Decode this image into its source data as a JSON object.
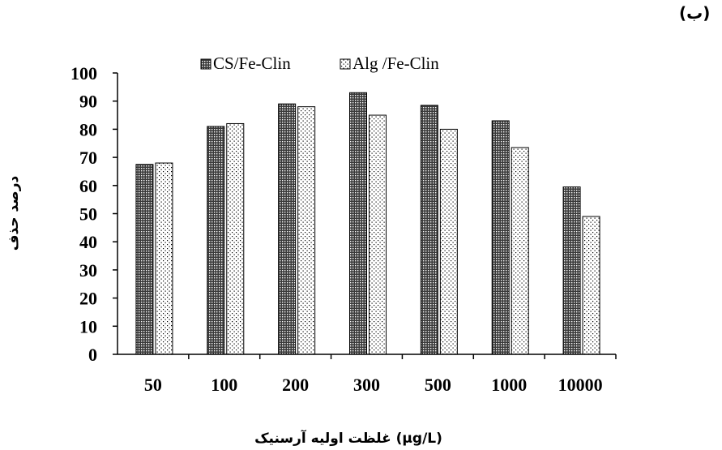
{
  "panel_label": "(ب)",
  "chart_data": {
    "type": "bar",
    "categories": [
      "50",
      "100",
      "200",
      "300",
      "500",
      "1000",
      "10000"
    ],
    "series": [
      {
        "name": "CS/Fe-Clin",
        "values": [
          67.5,
          81,
          89,
          93,
          88.5,
          83,
          59.5
        ],
        "pattern": "dense-dots"
      },
      {
        "name": "Alg /Fe-Clin",
        "values": [
          68,
          82,
          88,
          85,
          80,
          73.5,
          49
        ],
        "pattern": "sparse-dots"
      }
    ],
    "title": "",
    "xlabel": "غلظت اولیه آرسنیک (µg/L)",
    "ylabel": "درصد حذف",
    "ylim": [
      0,
      100
    ],
    "yticks": [
      0,
      10,
      20,
      30,
      40,
      50,
      60,
      70,
      80,
      90,
      100
    ],
    "grid": false,
    "legend_position": "top"
  }
}
